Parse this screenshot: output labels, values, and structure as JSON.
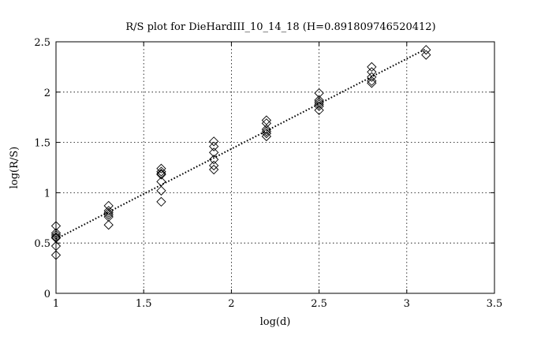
{
  "chart_data": {
    "type": "scatter",
    "title": "R/S plot for DieHardIII_10_14_18 (H=0.891809746520412)",
    "xlabel": "log(d)",
    "ylabel": "log(R/S)",
    "xlim": [
      1,
      3.5
    ],
    "ylim": [
      0,
      2.5
    ],
    "xticks": [
      1,
      1.5,
      2,
      2.5,
      3,
      3.5
    ],
    "yticks": [
      0,
      0.5,
      1,
      1.5,
      2,
      2.5
    ],
    "xtick_labels": [
      "1",
      "1.5",
      "2",
      "2.5",
      "3",
      "3.5"
    ],
    "ytick_labels": [
      "0",
      "0.5",
      "1",
      "1.5",
      "2",
      "2.5"
    ],
    "grid": true,
    "marker": "diamond",
    "series": [
      {
        "points": [
          {
            "x": 1.0,
            "y": 0.67
          },
          {
            "x": 1.0,
            "y": 0.6
          },
          {
            "x": 1.0,
            "y": 0.58
          },
          {
            "x": 1.0,
            "y": 0.56
          },
          {
            "x": 1.0,
            "y": 0.55
          },
          {
            "x": 1.0,
            "y": 0.47
          },
          {
            "x": 1.0,
            "y": 0.38
          },
          {
            "x": 1.3,
            "y": 0.87
          },
          {
            "x": 1.3,
            "y": 0.82
          },
          {
            "x": 1.3,
            "y": 0.8
          },
          {
            "x": 1.3,
            "y": 0.78
          },
          {
            "x": 1.3,
            "y": 0.76
          },
          {
            "x": 1.3,
            "y": 0.68
          },
          {
            "x": 1.6,
            "y": 1.24
          },
          {
            "x": 1.6,
            "y": 1.21
          },
          {
            "x": 1.6,
            "y": 1.19
          },
          {
            "x": 1.6,
            "y": 1.18
          },
          {
            "x": 1.6,
            "y": 1.11
          },
          {
            "x": 1.6,
            "y": 1.02
          },
          {
            "x": 1.6,
            "y": 0.91
          },
          {
            "x": 1.9,
            "y": 1.51
          },
          {
            "x": 1.9,
            "y": 1.46
          },
          {
            "x": 1.9,
            "y": 1.4
          },
          {
            "x": 1.9,
            "y": 1.33
          },
          {
            "x": 1.9,
            "y": 1.27
          },
          {
            "x": 1.9,
            "y": 1.23
          },
          {
            "x": 2.2,
            "y": 1.72
          },
          {
            "x": 2.2,
            "y": 1.69
          },
          {
            "x": 2.2,
            "y": 1.63
          },
          {
            "x": 2.2,
            "y": 1.61
          },
          {
            "x": 2.2,
            "y": 1.59
          },
          {
            "x": 2.2,
            "y": 1.56
          },
          {
            "x": 2.5,
            "y": 1.99
          },
          {
            "x": 2.5,
            "y": 1.92
          },
          {
            "x": 2.5,
            "y": 1.9
          },
          {
            "x": 2.5,
            "y": 1.88
          },
          {
            "x": 2.5,
            "y": 1.86
          },
          {
            "x": 2.5,
            "y": 1.82
          },
          {
            "x": 2.8,
            "y": 2.25
          },
          {
            "x": 2.8,
            "y": 2.2
          },
          {
            "x": 2.8,
            "y": 2.15
          },
          {
            "x": 2.8,
            "y": 2.11
          },
          {
            "x": 2.8,
            "y": 2.09
          },
          {
            "x": 3.11,
            "y": 2.42
          },
          {
            "x": 3.11,
            "y": 2.37
          }
        ]
      }
    ],
    "fit_line": {
      "x": [
        1.0,
        3.11
      ],
      "y": [
        0.54,
        2.43
      ]
    }
  }
}
